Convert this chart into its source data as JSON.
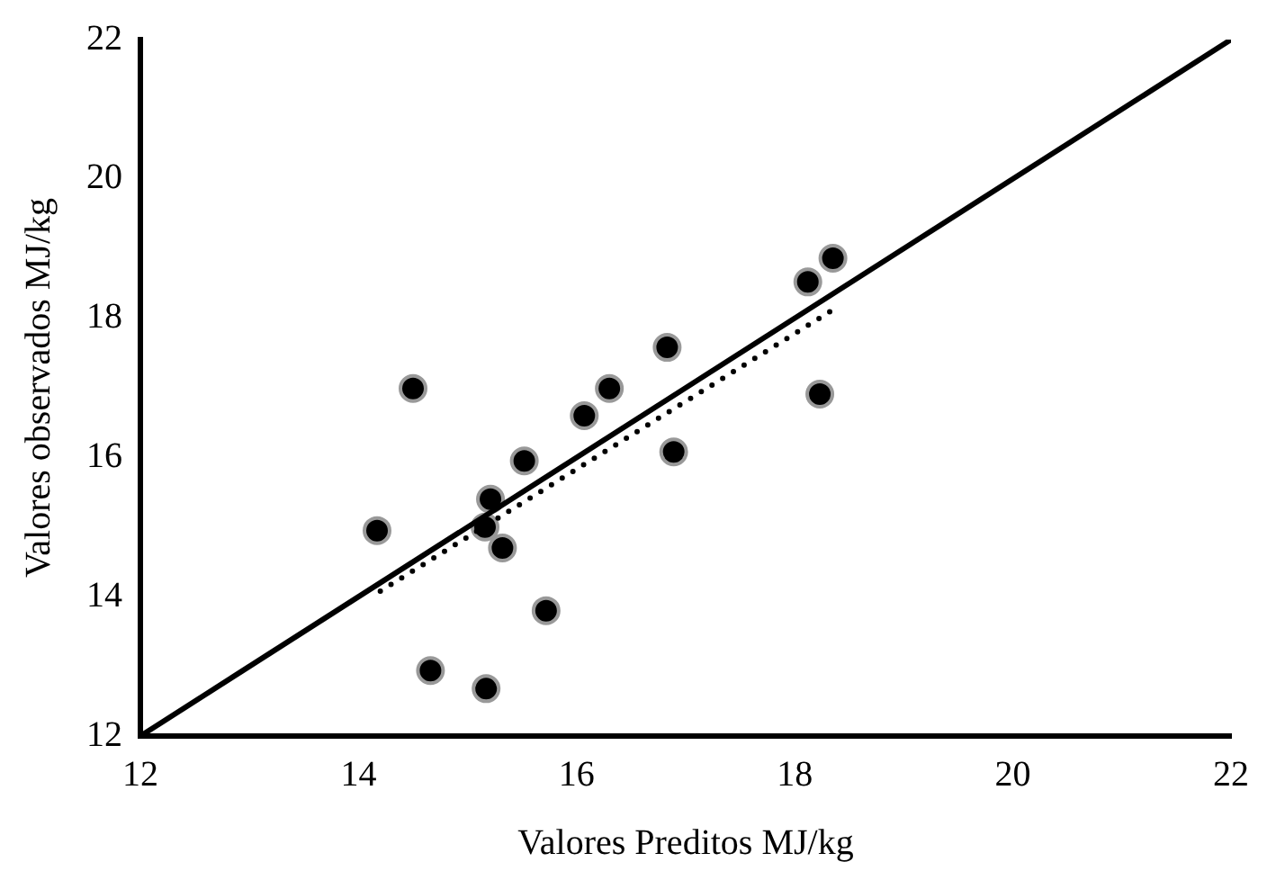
{
  "chart_data": {
    "type": "scatter",
    "xlabel": "Valores Preditos MJ/kg",
    "ylabel": "Valores observados MJ/kg",
    "xlim": [
      12,
      22
    ],
    "ylim": [
      12,
      22
    ],
    "xticks": [
      12,
      14,
      16,
      18,
      20,
      22
    ],
    "yticks": [
      12,
      14,
      16,
      18,
      20,
      22
    ],
    "grid": false,
    "legend": false,
    "marker": "circle",
    "series": [
      {
        "type": "scatter",
        "color": "#000000",
        "x": [
          14.17,
          14.5,
          14.66,
          15.17,
          15.16,
          15.21,
          15.32,
          15.52,
          15.72,
          16.07,
          16.3,
          16.83,
          16.89,
          18.12,
          18.35,
          18.23
        ],
        "values": [
          14.95,
          16.99,
          12.94,
          12.68,
          15.0,
          15.4,
          14.7,
          15.95,
          13.8,
          16.6,
          16.99,
          17.58,
          16.08,
          18.52,
          18.86,
          16.91
        ]
      },
      {
        "type": "line",
        "color": "#000000",
        "line_style": "solid",
        "marker": "none",
        "x": [
          12,
          22
        ],
        "values": [
          12,
          22
        ]
      },
      {
        "type": "line",
        "color": "#000000",
        "line_style": "dotted",
        "marker": "none",
        "x": [
          14.2,
          18.33
        ],
        "values": [
          14.08,
          18.1
        ]
      }
    ]
  }
}
